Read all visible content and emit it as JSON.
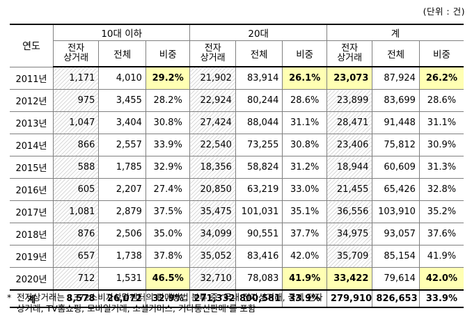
{
  "unit_label": "(단위 : 건)",
  "headers": {
    "year": "연도",
    "groups": [
      "10대 이하",
      "20대",
      "계"
    ],
    "sub": [
      "전자\n상거래",
      "전체",
      "비중"
    ]
  },
  "rows": [
    {
      "year": "2011년",
      "cells": [
        "1,171",
        "4,010",
        "29.2%",
        "21,902",
        "83,914",
        "26.1%",
        "23,073",
        "87,924",
        "26.2%"
      ],
      "hl": [
        2,
        5,
        6,
        8
      ]
    },
    {
      "year": "2012년",
      "cells": [
        "975",
        "3,455",
        "28.2%",
        "22,924",
        "80,244",
        "28.6%",
        "23,899",
        "83,699",
        "28.6%"
      ],
      "hl": []
    },
    {
      "year": "2013년",
      "cells": [
        "1,047",
        "3,404",
        "30.8%",
        "27,424",
        "88,044",
        "31.1%",
        "28,471",
        "91,448",
        "31.1%"
      ],
      "hl": []
    },
    {
      "year": "2014년",
      "cells": [
        "866",
        "2,557",
        "33.9%",
        "22,540",
        "73,255",
        "30.8%",
        "23,406",
        "75,812",
        "30.9%"
      ],
      "hl": []
    },
    {
      "year": "2015년",
      "cells": [
        "588",
        "1,785",
        "32.9%",
        "18,356",
        "58,824",
        "31.2%",
        "18,944",
        "60,609",
        "31.3%"
      ],
      "hl": []
    },
    {
      "year": "2016년",
      "cells": [
        "605",
        "2,207",
        "27.4%",
        "20,850",
        "63,219",
        "33.0%",
        "21,455",
        "65,426",
        "32.8%"
      ],
      "hl": []
    },
    {
      "year": "2017년",
      "cells": [
        "1,081",
        "2,879",
        "37.5%",
        "35,475",
        "101,031",
        "35.1%",
        "36,556",
        "103,910",
        "35.2%"
      ],
      "hl": []
    },
    {
      "year": "2018년",
      "cells": [
        "876",
        "2,506",
        "35.0%",
        "34,099",
        "90,551",
        "37.7%",
        "34,975",
        "93,057",
        "37.6%"
      ],
      "hl": []
    },
    {
      "year": "2019년",
      "cells": [
        "657",
        "1,738",
        "37.8%",
        "35,052",
        "83,416",
        "42.0%",
        "35,709",
        "85,154",
        "41.9%"
      ],
      "hl": []
    },
    {
      "year": "2020년",
      "cells": [
        "712",
        "1,531",
        "46.5%",
        "32,710",
        "78,083",
        "41.9%",
        "33,422",
        "79,614",
        "42.0%"
      ],
      "hl": [
        2,
        5,
        6,
        8
      ]
    }
  ],
  "total": {
    "year": "계",
    "cells": [
      "8,578",
      "26,072",
      "32.9%",
      "271,332",
      "800,581",
      "33.9%",
      "279,910",
      "826,653",
      "33.9%"
    ]
  },
  "note": {
    "marker": "*",
    "line1": "전자상거래는 1372소비자상담센터의 판매방법 분류 중 ‘국내 전자상거래, 국제 전자",
    "line2": "상거래, TV홈쇼핑, 모바일거래, 소셜커머스, 기타통신판매’를 포함"
  },
  "colors": {
    "highlight": "#ffffb3",
    "border": "#7f7f7f",
    "hatch": "#d9d9d9"
  }
}
